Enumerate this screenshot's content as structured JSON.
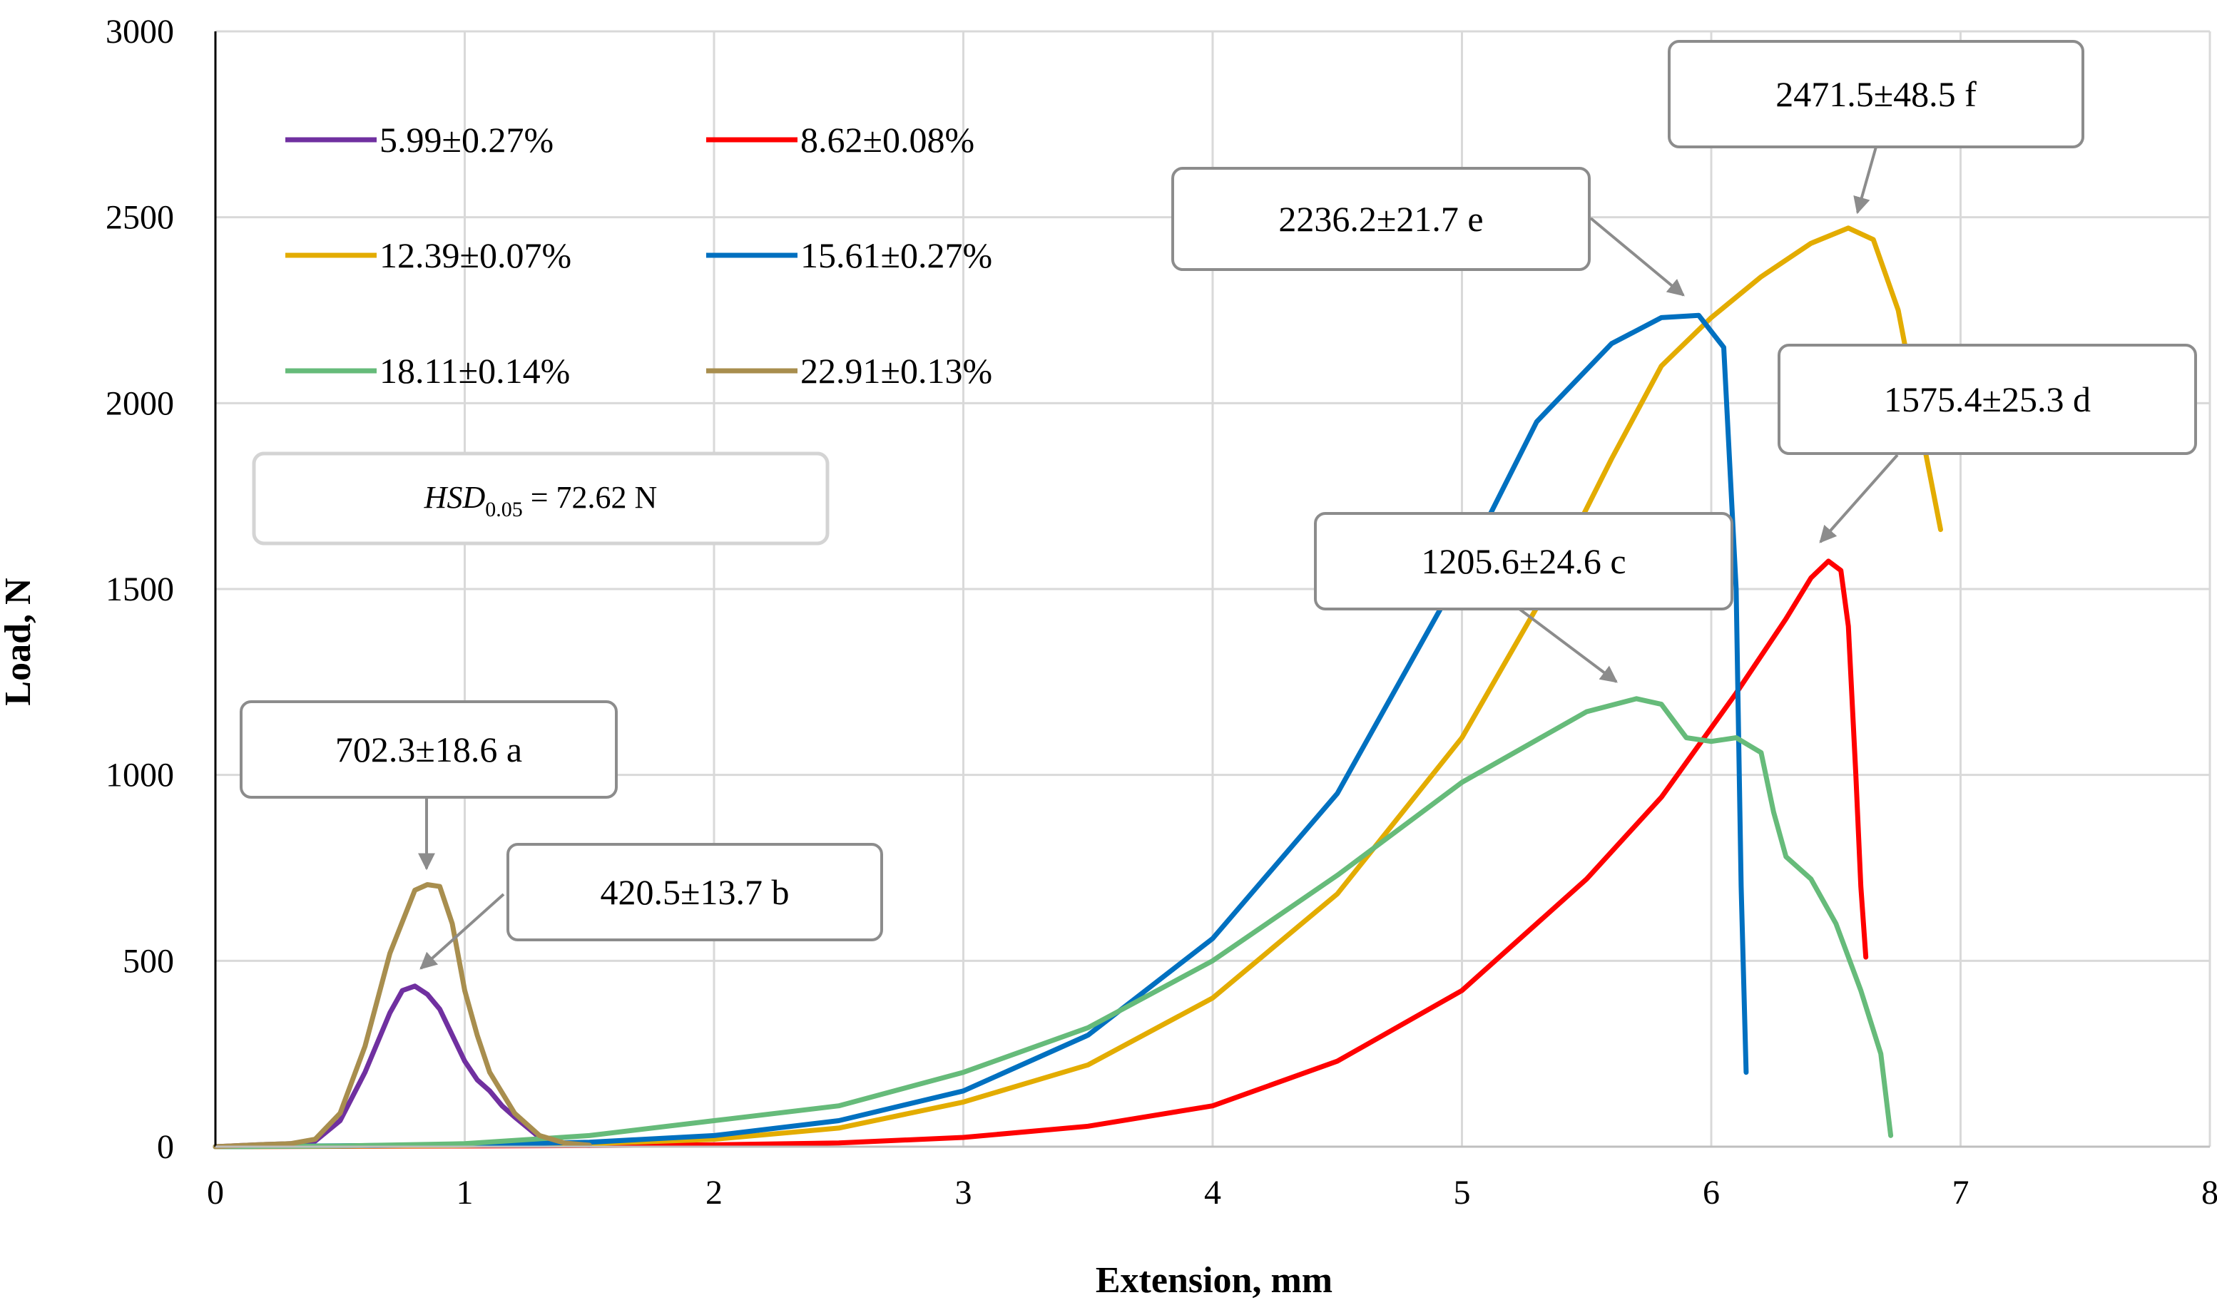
{
  "chart_data": {
    "type": "line",
    "xlabel": "Extension, mm",
    "ylabel": "Load, N",
    "xlim": [
      0,
      8
    ],
    "ylim": [
      0,
      3000
    ],
    "x_ticks": [
      "0",
      "1",
      "2",
      "3",
      "4",
      "5",
      "6",
      "7",
      "8"
    ],
    "y_ticks": [
      "0",
      "500",
      "1000",
      "1500",
      "2000",
      "2500",
      "3000"
    ],
    "grid": true,
    "legend_position": "top-left",
    "series": [
      {
        "name": "5.99±0.27%",
        "color": "#7030A0",
        "x": [
          0,
          0.1,
          0.2,
          0.3,
          0.4,
          0.5,
          0.6,
          0.7,
          0.75,
          0.8,
          0.85,
          0.9,
          0.95,
          1.0,
          1.05,
          1.1,
          1.15,
          1.2,
          1.3,
          1.4,
          1.5
        ],
        "y": [
          0,
          3,
          6,
          8,
          15,
          70,
          200,
          360,
          420,
          432,
          410,
          370,
          300,
          230,
          180,
          150,
          110,
          80,
          25,
          8,
          3
        ]
      },
      {
        "name": "8.62±0.08%",
        "color": "#FF0000",
        "x": [
          0,
          0.5,
          1,
          1.5,
          2,
          2.5,
          3,
          3.5,
          4,
          4.5,
          5,
          5.5,
          5.8,
          6.1,
          6.3,
          6.4,
          6.47,
          6.52,
          6.55,
          6.58,
          6.6,
          6.62
        ],
        "y": [
          0,
          1,
          2,
          3,
          5,
          10,
          25,
          55,
          110,
          230,
          420,
          720,
          940,
          1220,
          1420,
          1530,
          1575,
          1550,
          1400,
          1000,
          700,
          510
        ]
      },
      {
        "name": "12.39±0.07%",
        "color": "#E3AC00",
        "x": [
          0,
          1,
          1.5,
          2,
          2.5,
          3,
          3.5,
          4,
          4.5,
          5,
          5.3,
          5.6,
          5.8,
          6.0,
          6.2,
          6.4,
          6.55,
          6.65,
          6.75,
          6.85,
          6.92
        ],
        "y": [
          0,
          3,
          8,
          20,
          50,
          120,
          220,
          400,
          680,
          1100,
          1450,
          1850,
          2100,
          2230,
          2340,
          2430,
          2471,
          2440,
          2250,
          1900,
          1660
        ]
      },
      {
        "name": "15.61±0.27%",
        "color": "#0070C0",
        "x": [
          0,
          1,
          1.5,
          2,
          2.5,
          3,
          3.5,
          4,
          4.5,
          5,
          5.3,
          5.6,
          5.8,
          5.95,
          6.05,
          6.1,
          6.12,
          6.14
        ],
        "y": [
          0,
          5,
          12,
          30,
          70,
          150,
          300,
          560,
          950,
          1550,
          1950,
          2160,
          2230,
          2236,
          2150,
          1500,
          700,
          200
        ]
      },
      {
        "name": "18.11±0.14%",
        "color": "#66BB7A",
        "x": [
          0,
          0.5,
          1,
          1.5,
          2,
          2.5,
          3,
          3.5,
          4,
          4.5,
          5,
          5.5,
          5.7,
          5.8,
          5.9,
          6.0,
          6.1,
          6.2,
          6.25,
          6.3,
          6.4,
          6.5,
          6.6,
          6.68,
          6.72
        ],
        "y": [
          0,
          2,
          8,
          30,
          70,
          110,
          200,
          320,
          500,
          730,
          980,
          1170,
          1205,
          1190,
          1100,
          1090,
          1100,
          1060,
          900,
          780,
          720,
          600,
          420,
          250,
          30
        ]
      },
      {
        "name": "22.91±0.13%",
        "color": "#A88E4E",
        "x": [
          0,
          0.1,
          0.2,
          0.3,
          0.4,
          0.5,
          0.6,
          0.7,
          0.8,
          0.85,
          0.9,
          0.95,
          1.0,
          1.05,
          1.1,
          1.2,
          1.3,
          1.4,
          1.5
        ],
        "y": [
          0,
          3,
          6,
          8,
          20,
          90,
          270,
          520,
          690,
          705,
          700,
          600,
          420,
          300,
          200,
          90,
          30,
          10,
          4
        ]
      }
    ],
    "annotations": [
      {
        "text": "702.3±18.6 a",
        "point_x": 0.85,
        "point_y": 700
      },
      {
        "text": "420.5±13.7 b",
        "point_x": 0.83,
        "point_y": 432
      },
      {
        "text": "1205.6±24.6 c",
        "point_x": 5.65,
        "point_y": 1200
      },
      {
        "text": "1575.4±25.3 d",
        "point_x": 6.45,
        "point_y": 1580
      },
      {
        "text": "2236.2±21.7 e",
        "point_x": 5.9,
        "point_y": 2240
      },
      {
        "text": "2471.5±48.5 f",
        "point_x": 6.6,
        "point_y": 2478
      }
    ],
    "hsd_label": {
      "prefix": "HSD",
      "subscript": "0.05",
      "suffix": " = 72.62 N"
    }
  }
}
